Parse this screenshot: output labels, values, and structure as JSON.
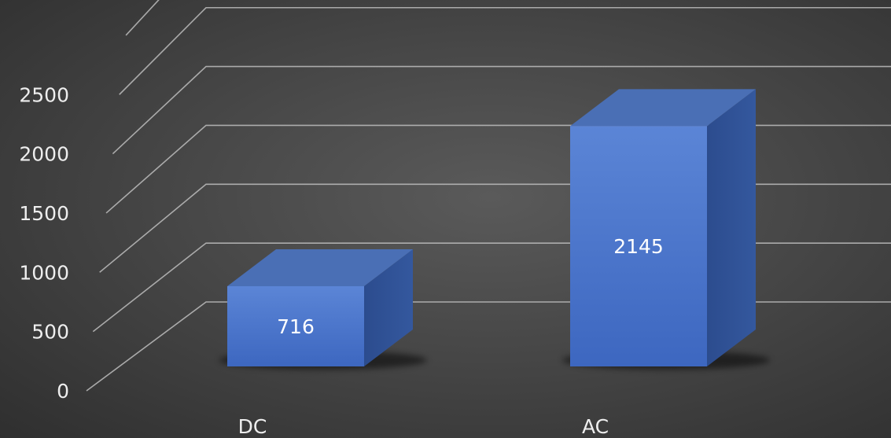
{
  "chart_data": {
    "type": "bar",
    "style": "3d-column",
    "title": "",
    "xlabel": "",
    "ylabel": "",
    "categories": [
      "DC",
      "AC"
    ],
    "values": [
      716,
      2145
    ],
    "data_labels": [
      "716",
      "2145"
    ],
    "y_ticks": [
      "0",
      "500",
      "1000",
      "1500",
      "2000",
      "2500"
    ],
    "ylim": [
      0,
      3000
    ],
    "grid": true,
    "legend": "none",
    "colors": {
      "bar_front": "#4472c4",
      "bar_top": "#4a6fb5",
      "bar_side": "#2f4f8f",
      "gridline": "#bdbdbd",
      "text": "#eeeeee",
      "background": "#474747"
    }
  }
}
